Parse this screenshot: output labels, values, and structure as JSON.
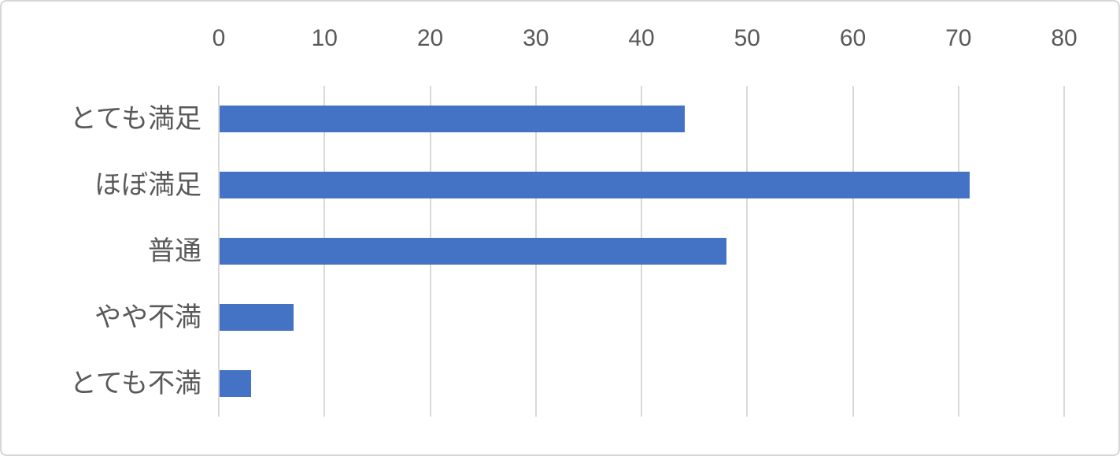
{
  "chart_data": {
    "type": "bar",
    "orientation": "horizontal",
    "title": "",
    "xlabel": "",
    "ylabel": "",
    "categories": [
      "とても満足",
      "ほぼ満足",
      "普通",
      "やや不満",
      "とても不満"
    ],
    "values": [
      44,
      71,
      48,
      7,
      3
    ],
    "xlim": [
      0,
      80
    ],
    "x_ticks": [
      0,
      10,
      20,
      30,
      40,
      50,
      60,
      70,
      80
    ],
    "tick_labels": [
      "0",
      "10",
      "20",
      "30",
      "40",
      "50",
      "60",
      "70",
      "80"
    ],
    "axis_position": "top",
    "grid": "vertical-only",
    "legend": "none",
    "colors": {
      "bar": "#4472C4",
      "gridline": "#D9D9D9",
      "axis_text": "#595959",
      "category_text": "#595959",
      "background": "#FFFFFF",
      "frame_border": "#D6D6D6"
    }
  }
}
